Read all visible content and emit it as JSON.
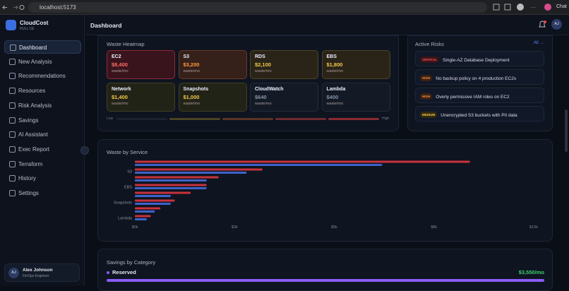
{
  "browser": {
    "url": "localhost:5173",
    "chat": "Chat"
  },
  "sidebar": {
    "brand": "CloudCost",
    "tagline": "FULL CE",
    "nav": [
      "Dashboard",
      "New Analysis",
      "Recommendations",
      "Resources",
      "Risk Analysis",
      "Savings",
      "AI Assistant",
      "Exec Report",
      "Terraform",
      "History",
      "Settings"
    ],
    "user": {
      "initials": "AJ",
      "name": "Alex Johnson",
      "role": "FinOps Engineer"
    }
  },
  "header": {
    "title": "Dashboard",
    "initials": "AJ"
  },
  "heatmap": {
    "title": "Waste Heatmap",
    "tiles": [
      {
        "service": "EC2",
        "amount": "$8,400",
        "unit": "waste/mo"
      },
      {
        "service": "S3",
        "amount": "$3,200",
        "unit": "waste/mo"
      },
      {
        "service": "RDS",
        "amount": "$2,100",
        "unit": "waste/mo"
      },
      {
        "service": "EBS",
        "amount": "$1,800",
        "unit": "waste/mo"
      },
      {
        "service": "Network",
        "amount": "$1,400",
        "unit": "waste/mo"
      },
      {
        "service": "Snapshots",
        "amount": "$1,000",
        "unit": "waste/mo"
      },
      {
        "service": "CloudWatch",
        "amount": "$640",
        "unit": "waste/mo"
      },
      {
        "service": "Lambda",
        "amount": "$400",
        "unit": "waste/mo"
      }
    ],
    "low": "Low",
    "high": "High"
  },
  "risks": {
    "title": "Active Risks",
    "link": "All →",
    "items": [
      {
        "severity": "CRITICAL",
        "text": "Single-AZ Database Deployment"
      },
      {
        "severity": "HIGH",
        "text": "No backup policy on 4 production EC2s"
      },
      {
        "severity": "HIGH",
        "text": "Overly permissive IAM roles on EC2"
      },
      {
        "severity": "MEDIUM",
        "text": "Unencrypted S3 buckets with PII data"
      }
    ]
  },
  "chart_data": {
    "type": "bar",
    "orientation": "horizontal",
    "title": "Waste by Service",
    "categories": [
      null,
      "S3",
      null,
      "EBS",
      null,
      "Snapshots",
      null,
      "Lambda"
    ],
    "series": [
      {
        "color": "#c8323c",
        "values": [
          8.4,
          3.2,
          2.1,
          1.8,
          1.4,
          1.0,
          0.64,
          0.4
        ]
      },
      {
        "color": "#3d63c9",
        "values": [
          6.2,
          2.8,
          1.8,
          1.8,
          0.9,
          0.9,
          0.5,
          0.3
        ]
      }
    ],
    "xlim": [
      0,
      10
    ],
    "xticks": [
      {
        "value": 0,
        "label": "$0k"
      },
      {
        "value": 2.5,
        "label": "$3k"
      },
      {
        "value": 5,
        "label": "$5k"
      },
      {
        "value": 7.5,
        "label": "$8k"
      },
      {
        "value": 10,
        "label": "$10k"
      }
    ]
  },
  "savings": {
    "title": "Savings by Category",
    "items": [
      {
        "name": "Reserved",
        "amount": "$3,550/mo"
      }
    ]
  }
}
